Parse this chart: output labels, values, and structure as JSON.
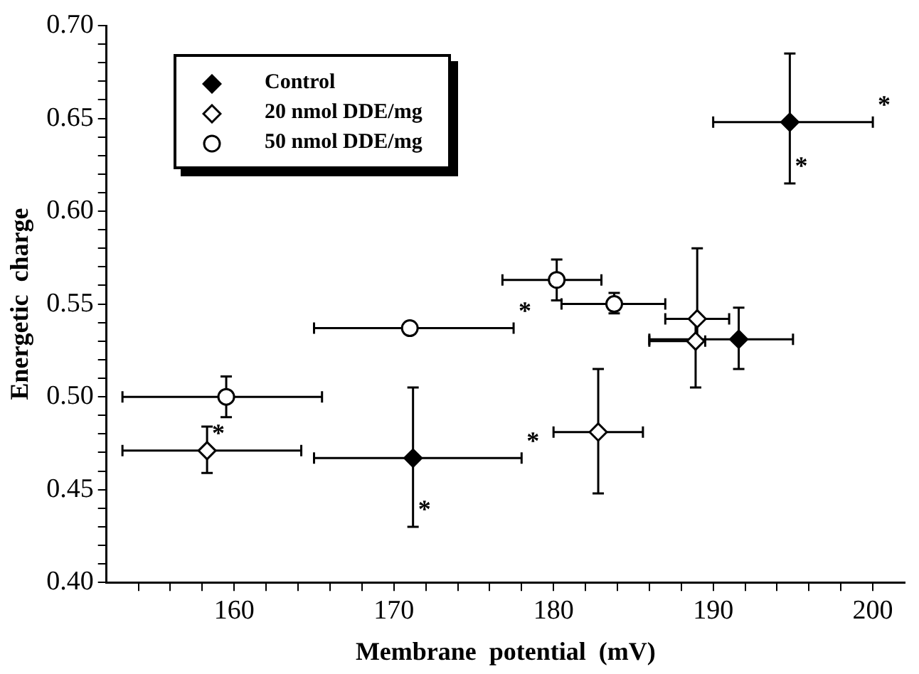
{
  "chart_data": {
    "type": "scatter",
    "xlabel": "Membrane  potential  (mV)",
    "ylabel": "Energetic  charge",
    "xlim": [
      152,
      202
    ],
    "ylim": [
      0.4,
      0.7
    ],
    "xticks": [
      {
        "value": 154,
        "label": null
      },
      {
        "value": 156,
        "label": null
      },
      {
        "value": 158,
        "label": null
      },
      160,
      {
        "value": 162,
        "label": null
      },
      {
        "value": 164,
        "label": null
      },
      {
        "value": 166,
        "label": null
      },
      {
        "value": 168,
        "label": null
      },
      170,
      {
        "value": 172,
        "label": null
      },
      {
        "value": 174,
        "label": null
      },
      {
        "value": 176,
        "label": null
      },
      {
        "value": 178,
        "label": null
      },
      180,
      {
        "value": 182,
        "label": null
      },
      {
        "value": 184,
        "label": null
      },
      {
        "value": 186,
        "label": null
      },
      {
        "value": 188,
        "label": null
      },
      190,
      {
        "value": 192,
        "label": null
      },
      {
        "value": 194,
        "label": null
      },
      {
        "value": 196,
        "label": null
      },
      {
        "value": 198,
        "label": null
      },
      200
    ],
    "yticks": [
      {
        "value": 0.4,
        "label": "0.40"
      },
      {
        "value": 0.41,
        "label": null
      },
      {
        "value": 0.42,
        "label": null
      },
      {
        "value": 0.43,
        "label": null
      },
      {
        "value": 0.44,
        "label": null
      },
      {
        "value": 0.45,
        "label": "0.45"
      },
      {
        "value": 0.46,
        "label": null
      },
      {
        "value": 0.47,
        "label": null
      },
      {
        "value": 0.48,
        "label": null
      },
      {
        "value": 0.49,
        "label": null
      },
      {
        "value": 0.5,
        "label": "0.50"
      },
      {
        "value": 0.51,
        "label": null
      },
      {
        "value": 0.52,
        "label": null
      },
      {
        "value": 0.53,
        "label": null
      },
      {
        "value": 0.54,
        "label": null
      },
      {
        "value": 0.55,
        "label": "0.55"
      },
      {
        "value": 0.56,
        "label": null
      },
      {
        "value": 0.57,
        "label": null
      },
      {
        "value": 0.58,
        "label": null
      },
      {
        "value": 0.59,
        "label": null
      },
      {
        "value": 0.6,
        "label": "0.60"
      },
      {
        "value": 0.61,
        "label": null
      },
      {
        "value": 0.62,
        "label": null
      },
      {
        "value": 0.63,
        "label": null
      },
      {
        "value": 0.64,
        "label": null
      },
      {
        "value": 0.65,
        "label": "0.65"
      },
      {
        "value": 0.66,
        "label": null
      },
      {
        "value": 0.67,
        "label": null
      },
      {
        "value": 0.68,
        "label": null
      },
      {
        "value": 0.69,
        "label": null
      },
      {
        "value": 0.7,
        "label": "0.70"
      }
    ],
    "grid": false,
    "legend": "top left",
    "series": [
      {
        "name": "Control",
        "color": "#000000",
        "marker": "diamond",
        "x": [
          194.8,
          171.2,
          191.6
        ],
        "values": [
          0.648,
          0.467,
          0.531
        ],
        "xerrors": [
          [
            190,
            200
          ],
          [
            165,
            178
          ],
          [
            186,
            195
          ]
        ],
        "errors": [
          [
            0.615,
            0.685
          ],
          [
            0.43,
            0.505
          ],
          [
            0.515,
            0.548
          ]
        ]
      },
      {
        "name": "20 nmol DDE/mg",
        "color": "#ffffff",
        "marker": "diamond",
        "x": [
          158.3,
          182.8,
          189,
          188.9
        ],
        "values": [
          0.471,
          0.481,
          0.542,
          0.53
        ],
        "xerrors": [
          [
            153,
            164.2
          ],
          [
            180,
            185.6
          ],
          [
            187,
            191
          ],
          [
            186,
            189.5
          ]
        ],
        "errors": [
          [
            0.459,
            0.484
          ],
          [
            0.448,
            0.515
          ],
          [
            0.53,
            0.58
          ],
          [
            0.505,
            0.543
          ]
        ]
      },
      {
        "name": "50 nmol DDE/mg",
        "color": "#ffffff",
        "marker": "circle",
        "x": [
          159.5,
          171,
          180.2,
          183.8
        ],
        "values": [
          0.5,
          0.537,
          0.563,
          0.55
        ],
        "xerrors": [
          [
            153,
            165.5
          ],
          [
            165,
            177.5
          ],
          [
            176.8,
            183
          ],
          [
            180.5,
            187
          ]
        ],
        "errors": [
          [
            0.489,
            0.511
          ],
          null,
          [
            0.552,
            0.574
          ],
          [
            0.545,
            0.556
          ]
        ]
      }
    ],
    "annotations": [
      {
        "text": "*",
        "x": 200,
        "y": 0.648
      },
      {
        "text": "*",
        "x": 194.8,
        "y": 0.615
      },
      {
        "text": "*",
        "x": 177.5,
        "y": 0.537
      },
      {
        "text": "*",
        "x": 178,
        "y": 0.467
      },
      {
        "text": "*",
        "x": 171.2,
        "y": 0.43
      },
      {
        "text": "*",
        "x": 158.3,
        "y": 0.471
      }
    ]
  }
}
